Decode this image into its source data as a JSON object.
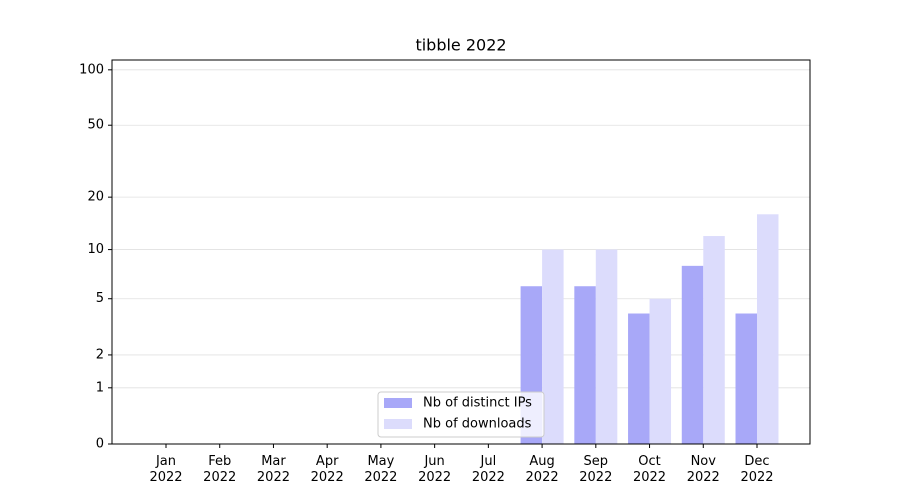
{
  "chart_data": {
    "type": "bar",
    "title": "tibble 2022",
    "categories": [
      "Jan\n2022",
      "Feb\n2022",
      "Mar\n2022",
      "Apr\n2022",
      "May\n2022",
      "Jun\n2022",
      "Jul\n2022",
      "Aug\n2022",
      "Sep\n2022",
      "Oct\n2022",
      "Nov\n2022",
      "Dec\n2022"
    ],
    "series": [
      {
        "name": "Nb of distinct IPs",
        "color": "#a8a8f8",
        "values": [
          0,
          0,
          0,
          0,
          0,
          0,
          0,
          6,
          6,
          4,
          8,
          4
        ]
      },
      {
        "name": "Nb of downloads",
        "color": "#dcdcfc",
        "values": [
          0,
          0,
          0,
          0,
          0,
          0,
          0,
          10,
          10,
          5,
          12,
          16
        ]
      }
    ],
    "y_scale": "log1p",
    "ylim": [
      0,
      113
    ],
    "yticks": [
      0,
      1,
      2,
      5,
      10,
      20,
      50,
      100
    ],
    "grid": true,
    "legend_position": "lower center"
  }
}
